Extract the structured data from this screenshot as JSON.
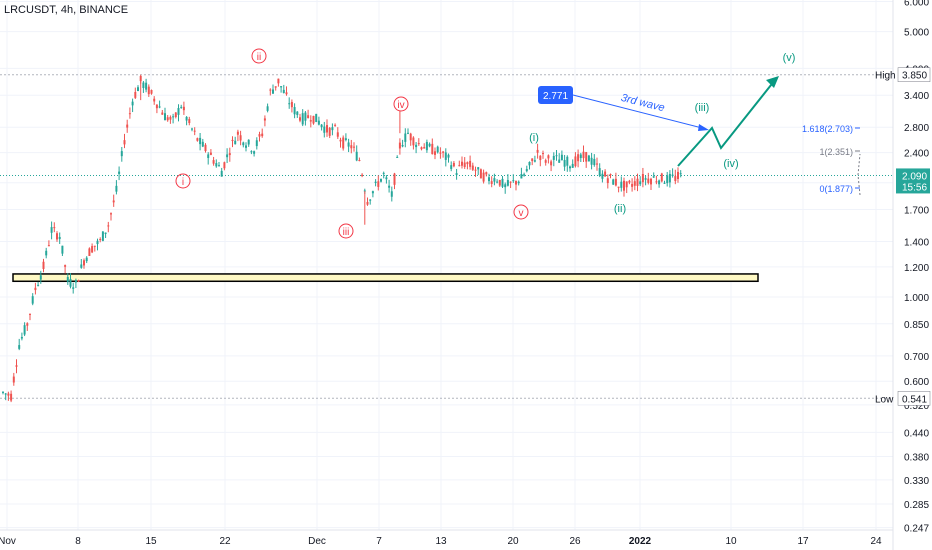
{
  "symbol_header": "LRCUSDT, 4h, BINANCE",
  "colors": {
    "up": "#26a69a",
    "down": "#ef5350",
    "teal": "#089981",
    "red_label": "#f23645",
    "blue": "#2962ff",
    "grid": "#f0f3fa",
    "axis_text": "#131722",
    "dotted": "#b2b5be"
  },
  "chart_data": {
    "type": "candlestick",
    "title": "LRCUSDT, 4h, BINANCE",
    "y_scale": "log",
    "y_ticks": [
      "6.000",
      "5.000",
      "4.000",
      "3.400",
      "2.800",
      "2.400",
      "2.000",
      "1.700",
      "1.400",
      "1.200",
      "1.000",
      "0.850",
      "0.700",
      "0.600",
      "0.520",
      "0.440",
      "0.380",
      "0.330",
      "0.285",
      "0.247"
    ],
    "x_ticks": [
      "Nov",
      "8",
      "15",
      "22",
      "Dec",
      "7",
      "13",
      "20",
      "26",
      "2022",
      "10",
      "17",
      "24"
    ],
    "price_labels": [
      {
        "label": "High",
        "value": "3.850"
      },
      {
        "label": "Low",
        "value": "0.541"
      },
      {
        "label": "",
        "value": "2.090"
      },
      {
        "label": "",
        "value": "15:56"
      }
    ],
    "wave_labels_red": [
      "i",
      "ii",
      "iii",
      "iv",
      "v"
    ],
    "wave_labels_teal": [
      "(i)",
      "(ii)",
      "(iii)",
      "(iv)",
      "(v)"
    ],
    "fib_labels": [
      "1.618(2.703)",
      "1(2.351)",
      "0(1.877)"
    ],
    "target_box": "2.771",
    "target_text": "3rd wave",
    "support_zone": [
      1.1,
      1.15
    ],
    "path": [
      {
        "x": 0,
        "y": 0.56
      },
      {
        "x": 3,
        "y": 0.55
      },
      {
        "x": 6,
        "y": 0.75
      },
      {
        "x": 9,
        "y": 0.85
      },
      {
        "x": 12,
        "y": 1.05
      },
      {
        "x": 15,
        "y": 1.2
      },
      {
        "x": 18,
        "y": 1.5
      },
      {
        "x": 21,
        "y": 1.45
      },
      {
        "x": 24,
        "y": 1.1
      },
      {
        "x": 27,
        "y": 1.08
      },
      {
        "x": 30,
        "y": 1.25
      },
      {
        "x": 33,
        "y": 1.35
      },
      {
        "x": 36,
        "y": 1.4
      },
      {
        "x": 39,
        "y": 1.55
      },
      {
        "x": 42,
        "y": 1.9
      },
      {
        "x": 45,
        "y": 2.6
      },
      {
        "x": 48,
        "y": 3.3
      },
      {
        "x": 51,
        "y": 3.7
      },
      {
        "x": 54,
        "y": 3.5
      },
      {
        "x": 57,
        "y": 3.25
      },
      {
        "x": 60,
        "y": 3.0
      },
      {
        "x": 63,
        "y": 2.9
      },
      {
        "x": 66,
        "y": 3.2
      },
      {
        "x": 69,
        "y": 2.85
      },
      {
        "x": 72,
        "y": 2.6
      },
      {
        "x": 75,
        "y": 2.45
      },
      {
        "x": 78,
        "y": 2.3
      },
      {
        "x": 81,
        "y": 2.15
      },
      {
        "x": 84,
        "y": 2.45
      },
      {
        "x": 87,
        "y": 2.7
      },
      {
        "x": 90,
        "y": 2.55
      },
      {
        "x": 93,
        "y": 2.45
      },
      {
        "x": 96,
        "y": 2.7
      },
      {
        "x": 99,
        "y": 3.45
      },
      {
        "x": 102,
        "y": 3.7
      },
      {
        "x": 105,
        "y": 3.35
      },
      {
        "x": 108,
        "y": 3.1
      },
      {
        "x": 111,
        "y": 2.95
      },
      {
        "x": 114,
        "y": 3.0
      },
      {
        "x": 117,
        "y": 2.9
      },
      {
        "x": 120,
        "y": 2.75
      },
      {
        "x": 123,
        "y": 2.75
      },
      {
        "x": 126,
        "y": 2.55
      },
      {
        "x": 129,
        "y": 2.5
      },
      {
        "x": 132,
        "y": 2.3
      },
      {
        "x": 135,
        "y": 1.8
      },
      {
        "x": 138,
        "y": 1.95
      },
      {
        "x": 141,
        "y": 2.1
      },
      {
        "x": 144,
        "y": 1.85
      },
      {
        "x": 147,
        "y": 2.5
      },
      {
        "x": 150,
        "y": 2.7
      },
      {
        "x": 153,
        "y": 2.55
      },
      {
        "x": 156,
        "y": 2.5
      },
      {
        "x": 159,
        "y": 2.45
      },
      {
        "x": 162,
        "y": 2.4
      },
      {
        "x": 165,
        "y": 2.3
      },
      {
        "x": 168,
        "y": 2.15
      },
      {
        "x": 171,
        "y": 2.25
      },
      {
        "x": 174,
        "y": 2.2
      },
      {
        "x": 177,
        "y": 2.1
      },
      {
        "x": 180,
        "y": 2.05
      },
      {
        "x": 183,
        "y": 2.05
      },
      {
        "x": 186,
        "y": 1.95
      },
      {
        "x": 189,
        "y": 2.0
      },
      {
        "x": 192,
        "y": 2.05
      },
      {
        "x": 195,
        "y": 2.2
      },
      {
        "x": 198,
        "y": 2.4
      },
      {
        "x": 201,
        "y": 2.3
      },
      {
        "x": 204,
        "y": 2.3
      },
      {
        "x": 207,
        "y": 2.3
      },
      {
        "x": 210,
        "y": 2.25
      },
      {
        "x": 213,
        "y": 2.3
      },
      {
        "x": 216,
        "y": 2.35
      },
      {
        "x": 219,
        "y": 2.25
      },
      {
        "x": 222,
        "y": 2.1
      },
      {
        "x": 225,
        "y": 2.05
      },
      {
        "x": 228,
        "y": 1.98
      },
      {
        "x": 231,
        "y": 1.95
      },
      {
        "x": 234,
        "y": 2.0
      },
      {
        "x": 237,
        "y": 2.05
      },
      {
        "x": 240,
        "y": 2.05
      },
      {
        "x": 243,
        "y": 2.05
      },
      {
        "x": 246,
        "y": 2.04
      },
      {
        "x": 249,
        "y": 2.06
      },
      {
        "x": 252,
        "y": 2.09
      }
    ]
  }
}
